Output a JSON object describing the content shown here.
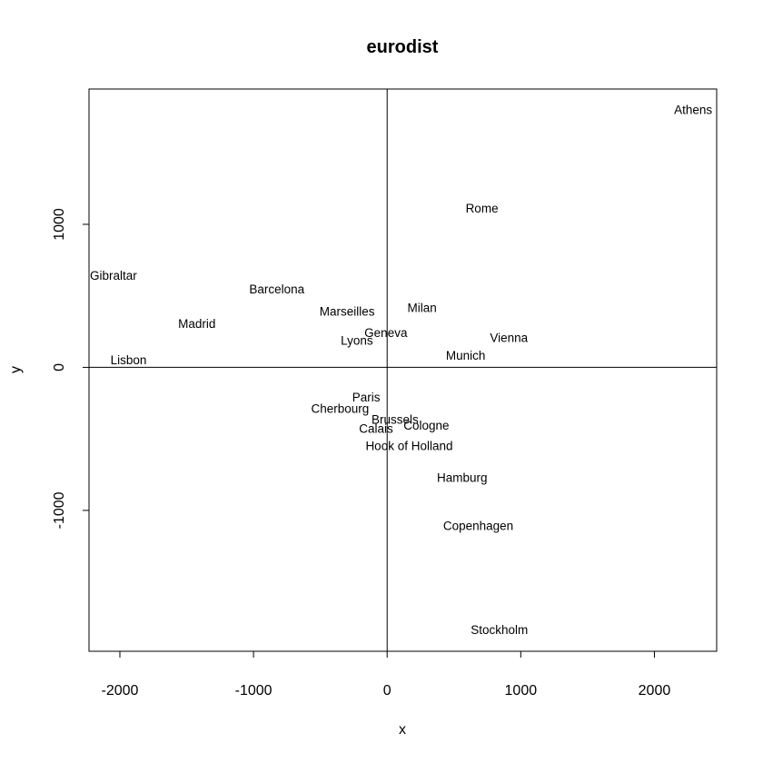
{
  "chart_data": {
    "type": "scatter",
    "title": "eurodist",
    "xlabel": "x",
    "ylabel": "y",
    "xlim": [
      -2231,
      2466
    ],
    "ylim": [
      -1985,
      1946
    ],
    "xticks": [
      -2000,
      -1000,
      0,
      1000,
      2000
    ],
    "yticks": [
      -1000,
      0,
      1000
    ],
    "xtick_labels": [
      "-2000",
      "-1000",
      "0",
      "1000",
      "2000"
    ],
    "ytick_labels": [
      "-1000",
      "0",
      "1000"
    ],
    "reference_lines": {
      "x": 0,
      "y": 0
    },
    "grid": false,
    "legend": "none",
    "points": [
      {
        "label": "Athens",
        "x": 2290.27,
        "y": 1798.8
      },
      {
        "label": "Barcelona",
        "x": -825.38,
        "y": 546.81
      },
      {
        "label": "Brussels",
        "x": 59.18,
        "y": -367.08
      },
      {
        "label": "Calais",
        "x": -82.85,
        "y": -429.91
      },
      {
        "label": "Cherbourg",
        "x": -352.5,
        "y": -290.91
      },
      {
        "label": "Cologne",
        "x": 293.69,
        "y": -405.31
      },
      {
        "label": "Copenhagen",
        "x": 681.93,
        "y": -1108.64
      },
      {
        "label": "Geneva",
        "x": -9.42,
        "y": 240.41
      },
      {
        "label": "Gibraltar",
        "x": -2048.45,
        "y": 642.46
      },
      {
        "label": "Hamburg",
        "x": 561.11,
        "y": -773.37
      },
      {
        "label": "Hook of Holland",
        "x": 164.92,
        "y": -549.37
      },
      {
        "label": "Lisbon",
        "x": -1935.04,
        "y": 49.13
      },
      {
        "label": "Lyons",
        "x": -226.42,
        "y": 187.09
      },
      {
        "label": "Madrid",
        "x": -1423.35,
        "y": 305.88
      },
      {
        "label": "Marseilles",
        "x": -299.5,
        "y": 388.81
      },
      {
        "label": "Milan",
        "x": 260.88,
        "y": 416.67
      },
      {
        "label": "Munich",
        "x": 587.68,
        "y": 81.18
      },
      {
        "label": "Paris",
        "x": -156.84,
        "y": -211.14
      },
      {
        "label": "Rome",
        "x": 709.41,
        "y": 1109.36
      },
      {
        "label": "Stockholm",
        "x": 839.45,
        "y": -1836.79
      },
      {
        "label": "Vienna",
        "x": 911.23,
        "y": 205.93
      }
    ]
  }
}
